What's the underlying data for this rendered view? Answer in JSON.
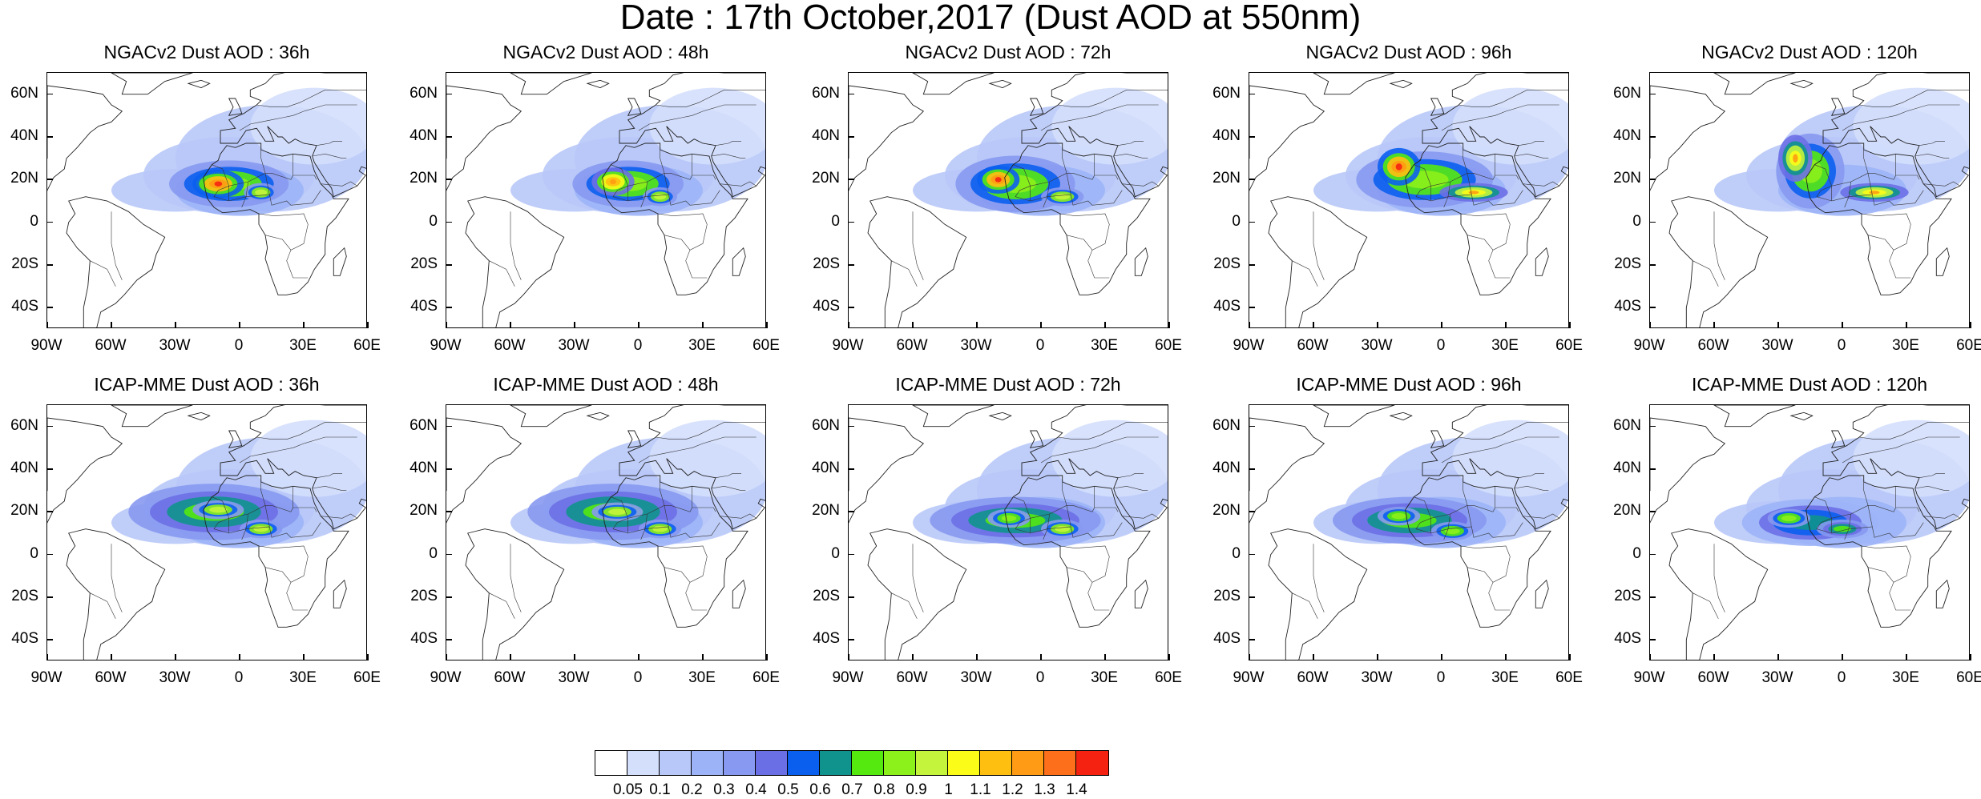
{
  "title": "Date : 17th October,2017 (Dust AOD at 550nm)",
  "lat_labels": [
    "60N",
    "40N",
    "20N",
    "0",
    "20S",
    "40S"
  ],
  "lon_labels": [
    "90W",
    "60W",
    "30W",
    "0",
    "30E",
    "60E"
  ],
  "panels": [
    {
      "title": "NGACv2 Dust AOD : 36h",
      "plumes": [
        [
          -5,
          18,
          14,
          5,
          0.9
        ],
        [
          -10,
          18,
          6,
          3,
          1.3
        ],
        [
          10,
          14,
          4,
          2,
          1.0
        ]
      ]
    },
    {
      "title": "NGACv2 Dust AOD : 48h",
      "plumes": [
        [
          -5,
          18,
          13,
          5,
          0.9
        ],
        [
          -12,
          19,
          5,
          3,
          1.2
        ],
        [
          10,
          12,
          4,
          2,
          1.0
        ]
      ]
    },
    {
      "title": "NGACv2 Dust AOD : 72h",
      "plumes": [
        [
          -12,
          18,
          14,
          6,
          0.9
        ],
        [
          -20,
          20,
          5,
          3,
          1.3
        ],
        [
          10,
          12,
          5,
          2,
          1.0
        ]
      ]
    },
    {
      "title": "NGACv2 Dust AOD : 96h",
      "plumes": [
        [
          -8,
          20,
          16,
          6,
          0.9
        ],
        [
          -20,
          26,
          5,
          4,
          1.3
        ],
        [
          15,
          14,
          8,
          2,
          1.1
        ]
      ]
    },
    {
      "title": "NGACv2 Dust AOD : 120h",
      "plumes": [
        [
          -15,
          24,
          8,
          8,
          0.9
        ],
        [
          -22,
          30,
          4,
          5,
          1.1
        ],
        [
          15,
          14,
          8,
          2,
          1.1
        ]
      ]
    },
    {
      "title": "ICAP-MME Dust AOD : 36h",
      "plumes": [
        [
          -12,
          20,
          20,
          6,
          0.8
        ],
        [
          -10,
          21,
          6,
          2,
          0.95
        ],
        [
          10,
          12,
          5,
          2,
          1.0
        ]
      ]
    },
    {
      "title": "ICAP-MME Dust AOD : 48h",
      "plumes": [
        [
          -12,
          20,
          20,
          6,
          0.8
        ],
        [
          -10,
          20,
          6,
          2,
          0.95
        ],
        [
          10,
          12,
          5,
          2,
          1.0
        ]
      ]
    },
    {
      "title": "ICAP-MME Dust AOD : 72h",
      "plumes": [
        [
          -12,
          16,
          20,
          5,
          0.8
        ],
        [
          -15,
          17,
          5,
          2,
          0.9
        ],
        [
          10,
          12,
          5,
          2,
          0.95
        ]
      ]
    },
    {
      "title": "ICAP-MME Dust AOD : 96h",
      "plumes": [
        [
          -15,
          16,
          18,
          5,
          0.75
        ],
        [
          -20,
          18,
          5,
          2,
          0.9
        ],
        [
          5,
          11,
          5,
          2,
          0.9
        ]
      ]
    },
    {
      "title": "ICAP-MME Dust AOD : 120h",
      "plumes": [
        [
          -15,
          15,
          16,
          5,
          0.7
        ],
        [
          -25,
          17,
          5,
          2,
          0.85
        ],
        [
          0,
          12,
          6,
          2,
          0.8
        ]
      ]
    }
  ],
  "colorbar": {
    "labels": [
      "0.05",
      "0.1",
      "0.2",
      "0.3",
      "0.4",
      "0.5",
      "0.6",
      "0.7",
      "0.8",
      "0.9",
      "1",
      "1.1",
      "1.2",
      "1.3",
      "1.4"
    ],
    "colors": [
      "#ffffff",
      "#d4dffc",
      "#b8c8f8",
      "#9cb4f7",
      "#8799f0",
      "#6b6fe5",
      "#0b5fef",
      "#10938c",
      "#55e910",
      "#8cf01a",
      "#c4f53c",
      "#fbfc17",
      "#ffbf11",
      "#ff9b14",
      "#fd6f1a",
      "#f52212"
    ]
  }
}
